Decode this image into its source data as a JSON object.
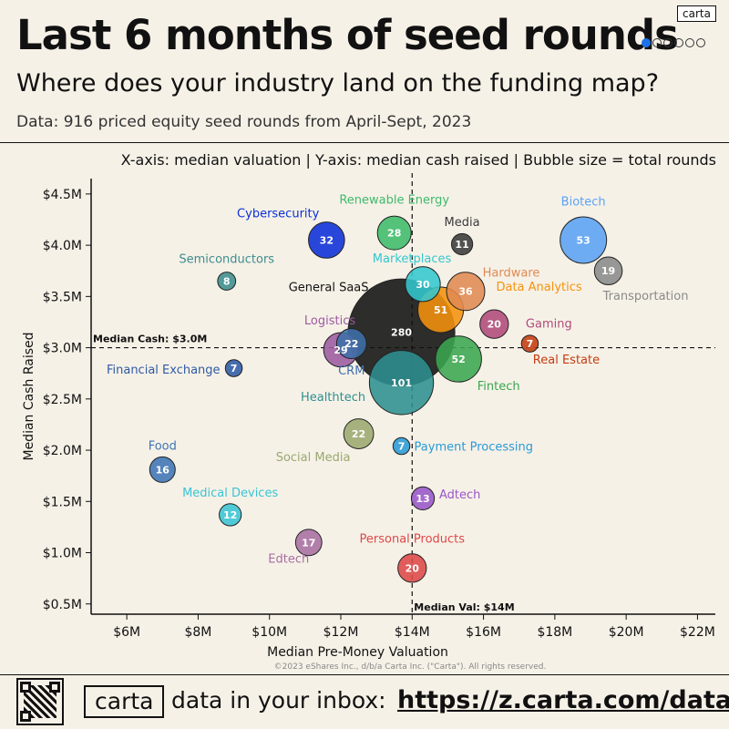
{
  "header": {
    "title": "Last 6 months of seed rounds",
    "subtitle": "Where does your industry land on the funding map?",
    "source": "Data: 916 priced equity seed rounds from April-Sept, 2023",
    "brand_badge": "carta",
    "pagination": {
      "total": 6,
      "active": 1
    }
  },
  "legend_note": "X-axis: median valuation |  Y-axis: median cash raised | Bubble size = total rounds",
  "chart_data": {
    "type": "scatter",
    "bubble": true,
    "xlabel": "Median Pre-Money Valuation",
    "ylabel": "Median Cash Raised",
    "xlim": [
      5,
      22.5
    ],
    "ylim": [
      0.4,
      4.65
    ],
    "x_ticks": [
      6,
      8,
      10,
      12,
      14,
      16,
      18,
      20,
      22
    ],
    "x_tick_labels": [
      "$6M",
      "$8M",
      "$10M",
      "$12M",
      "$14M",
      "$16M",
      "$18M",
      "$20M",
      "$22M"
    ],
    "y_ticks": [
      0.5,
      1.0,
      1.5,
      2.0,
      2.5,
      3.0,
      3.5,
      4.0,
      4.5
    ],
    "y_tick_labels": [
      "$0.5M",
      "$1.0M",
      "$1.5M",
      "$2.0M",
      "$2.5M",
      "$3.0M",
      "$3.5M",
      "$4.0M",
      "$4.5M"
    ],
    "grid": false,
    "ref_lines": {
      "median_cash": {
        "value": 3.0,
        "label": "Median Cash: $3.0M"
      },
      "median_val": {
        "value": 14,
        "label": "Median Val: $14M"
      }
    },
    "points": [
      {
        "name": "Cybersecurity",
        "x": 11.6,
        "y": 4.05,
        "rounds": 32,
        "color": "#0b2fd8"
      },
      {
        "name": "Renewable Energy",
        "x": 13.5,
        "y": 4.12,
        "rounds": 28,
        "color": "#3dbb6a"
      },
      {
        "name": "Media",
        "x": 15.4,
        "y": 4.01,
        "rounds": 11,
        "color": "#3a3a3a"
      },
      {
        "name": "Biotech",
        "x": 18.8,
        "y": 4.05,
        "rounds": 53,
        "color": "#5aa2f5"
      },
      {
        "name": "Transportation",
        "x": 19.5,
        "y": 3.75,
        "rounds": 19,
        "color": "#8a8a8a"
      },
      {
        "name": "Semiconductors",
        "x": 8.8,
        "y": 3.65,
        "rounds": 8,
        "color": "#3c8d8e"
      },
      {
        "name": "Marketplaces",
        "x": 14.3,
        "y": 3.62,
        "rounds": 30,
        "color": "#33c7cf"
      },
      {
        "name": "Hardware",
        "x": 15.5,
        "y": 3.55,
        "rounds": 36,
        "color": "#e08a52"
      },
      {
        "name": "Data Analytics",
        "x": 14.8,
        "y": 3.37,
        "rounds": 51,
        "color": "#f5920c"
      },
      {
        "name": "General SaaS",
        "x": 13.7,
        "y": 3.15,
        "rounds": 280,
        "color": "#111111"
      },
      {
        "name": "Gaming",
        "x": 16.3,
        "y": 3.23,
        "rounds": 20,
        "color": "#b04a7a"
      },
      {
        "name": "Logistics",
        "x": 12.0,
        "y": 2.98,
        "rounds": 29,
        "color": "#9c5aa0"
      },
      {
        "name": "CRM",
        "x": 12.3,
        "y": 3.04,
        "rounds": 22,
        "color": "#3f6fa8"
      },
      {
        "name": "Real Estate",
        "x": 17.3,
        "y": 3.04,
        "rounds": 7,
        "color": "#c43c10"
      },
      {
        "name": "Financial Exchange",
        "x": 9.0,
        "y": 2.8,
        "rounds": 7,
        "color": "#2e5aa5"
      },
      {
        "name": "Healthtech",
        "x": 13.7,
        "y": 2.66,
        "rounds": 101,
        "color": "#2e8f8f"
      },
      {
        "name": "Fintech",
        "x": 15.3,
        "y": 2.89,
        "rounds": 52,
        "color": "#3aa64f"
      },
      {
        "name": "Social Media",
        "x": 12.5,
        "y": 2.16,
        "rounds": 22,
        "color": "#9aa870"
      },
      {
        "name": "Payment Processing",
        "x": 13.7,
        "y": 2.04,
        "rounds": 7,
        "color": "#2a9ad6"
      },
      {
        "name": "Food",
        "x": 7.0,
        "y": 1.81,
        "rounds": 16,
        "color": "#3d74b5"
      },
      {
        "name": "Medical Devices",
        "x": 8.9,
        "y": 1.37,
        "rounds": 12,
        "color": "#39c4d4"
      },
      {
        "name": "Adtech",
        "x": 14.3,
        "y": 1.53,
        "rounds": 13,
        "color": "#9955c8"
      },
      {
        "name": "Edtech",
        "x": 11.1,
        "y": 1.1,
        "rounds": 17,
        "color": "#a86ea2"
      },
      {
        "name": "Personal Products",
        "x": 14.0,
        "y": 0.85,
        "rounds": 20,
        "color": "#dd4848"
      }
    ]
  },
  "copyright": "©2023 eShares Inc., d/b/a Carta Inc. (\"Carta\"). All rights reserved.",
  "footer": {
    "brand": "carta",
    "inbox_text": "data in your inbox:",
    "link": "https://z.carta.com/data"
  }
}
